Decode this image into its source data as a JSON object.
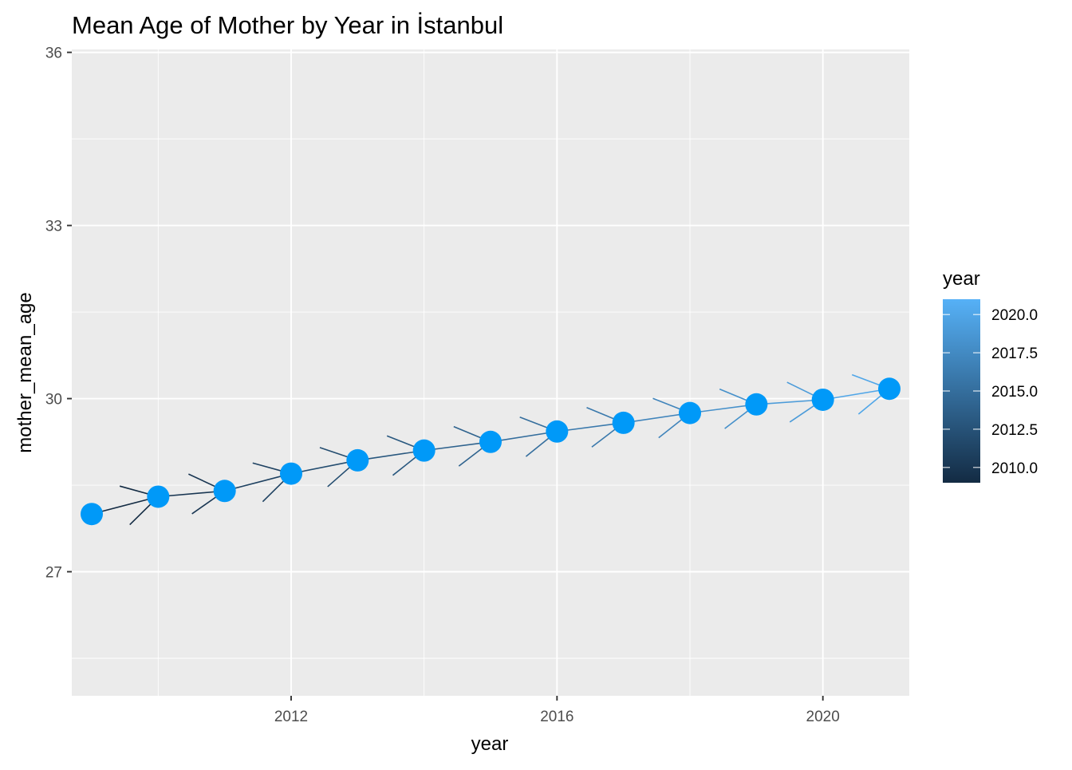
{
  "chart_data": {
    "type": "line",
    "title": "Mean Age of Mother by Year in İstanbul",
    "xlabel": "year",
    "ylabel": "mother_mean_age",
    "xlim": [
      2008.7,
      2021.3
    ],
    "ylim": [
      24.85,
      36.05
    ],
    "x_ticks": [
      2012,
      2016,
      2020
    ],
    "x_tick_labels": [
      "2012",
      "2016",
      "2020"
    ],
    "y_ticks": [
      27,
      30,
      33,
      36
    ],
    "y_tick_labels": [
      "27",
      "30",
      "33",
      "36"
    ],
    "grid": true,
    "point_color": "#0099F8",
    "x": [
      2009,
      2010,
      2011,
      2012,
      2013,
      2014,
      2015,
      2016,
      2017,
      2018,
      2019,
      2020,
      2021
    ],
    "y": [
      28.0,
      28.3,
      28.4,
      28.7,
      28.93,
      29.1,
      29.25,
      29.43,
      29.58,
      29.75,
      29.9,
      29.98,
      30.17
    ],
    "legend": {
      "title": "year",
      "position": "right",
      "type": "colorbar",
      "range": [
        2009,
        2021
      ],
      "labels": [
        "2010.0",
        "2012.5",
        "2015.0",
        "2017.5",
        "2020.0"
      ],
      "breaks": [
        2010,
        2012.5,
        2015,
        2017.5,
        2020
      ],
      "color_low": "#132B43",
      "color_high": "#56B1F7"
    }
  }
}
